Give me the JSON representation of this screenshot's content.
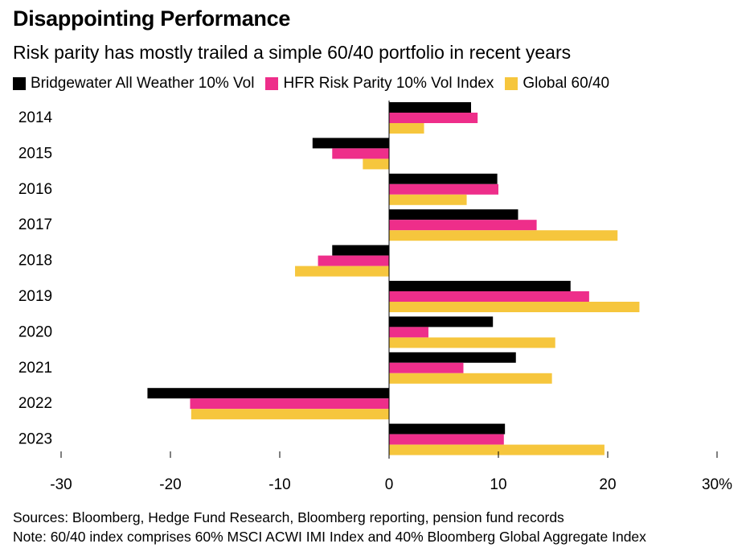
{
  "header": {
    "title": "Disappointing Performance",
    "subtitle": "Risk parity has mostly trailed a simple 60/40 portfolio in recent years"
  },
  "footer": {
    "sources": "Sources: Bloomberg, Hedge Fund Research, Bloomberg reporting, pension fund records",
    "note": "Note: 60/40 index comprises 60% MSCI ACWI IMI Index and 40% Bloomberg Global Aggregate Index"
  },
  "chart_data": {
    "type": "bar",
    "orientation": "horizontal",
    "title": "Disappointing Performance",
    "subtitle": "Risk parity has mostly trailed a simple 60/40 portfolio in recent years",
    "categories": [
      "2014",
      "2015",
      "2016",
      "2017",
      "2018",
      "2019",
      "2020",
      "2021",
      "2022",
      "2023"
    ],
    "series": [
      {
        "name": "Bridgewater All Weather 10% Vol",
        "color": "#000000",
        "values": [
          7.5,
          -7.0,
          9.9,
          11.8,
          -5.2,
          16.6,
          9.5,
          11.6,
          -22.1,
          10.6
        ]
      },
      {
        "name": "HFR Risk Parity 10% Vol Index",
        "color": "#ee2e8a",
        "values": [
          8.1,
          -5.2,
          10.0,
          13.5,
          -6.5,
          18.3,
          3.6,
          6.8,
          -18.2,
          10.5
        ]
      },
      {
        "name": "Global 60/40",
        "color": "#f6c63d",
        "values": [
          3.2,
          -2.4,
          7.1,
          20.9,
          -8.6,
          22.9,
          15.2,
          14.9,
          -18.1,
          19.7
        ]
      }
    ],
    "xlim": [
      -30,
      30
    ],
    "xticks": [
      -30,
      -20,
      -10,
      0,
      10,
      20,
      30
    ],
    "xtick_labels": [
      "-30",
      "-20",
      "-10",
      "0",
      "10",
      "20",
      "30%"
    ],
    "xlabel": "",
    "ylabel": "",
    "grid": false,
    "legend_position": "top-left"
  }
}
